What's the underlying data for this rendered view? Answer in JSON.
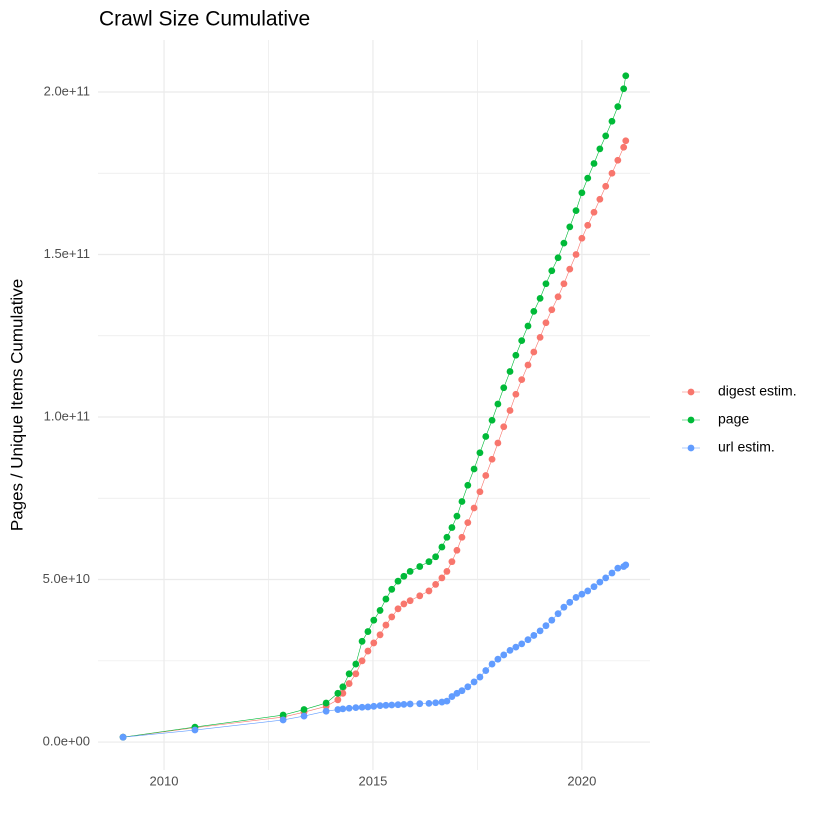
{
  "chart_data": {
    "type": "line",
    "title": "Crawl Size Cumulative",
    "y_label": "Pages / Unique Items Cumulative",
    "x": [
      2009.02,
      2010.74,
      2012.85,
      2013.35,
      2013.88,
      2014.16,
      2014.28,
      2014.43,
      2014.59,
      2014.74,
      2014.88,
      2015.02,
      2015.17,
      2015.31,
      2015.45,
      2015.6,
      2015.74,
      2015.89,
      2016.12,
      2016.34,
      2016.5,
      2016.65,
      2016.77,
      2016.89,
      2017.01,
      2017.13,
      2017.27,
      2017.42,
      2017.56,
      2017.7,
      2017.85,
      2017.99,
      2018.13,
      2018.28,
      2018.42,
      2018.56,
      2018.71,
      2018.85,
      2019.0,
      2019.14,
      2019.28,
      2019.43,
      2019.57,
      2019.71,
      2019.86,
      2020.0,
      2020.14,
      2020.29,
      2020.43,
      2020.57,
      2020.72,
      2020.86,
      2021.0,
      2021.05
    ],
    "series": [
      {
        "name": "digest estim.",
        "color": "#F8766D",
        "values": [
          1500000000.0,
          4400000000.0,
          7700000000.0,
          9200000000.0,
          11000000000.0,
          13000000000.0,
          15000000000.0,
          18000000000.0,
          21000000000.0,
          25000000000.0,
          28000000000.0,
          30500000000.0,
          33000000000.0,
          36000000000.0,
          38500000000.0,
          41000000000.0,
          42500000000.0,
          43500000000.0,
          45000000000.0,
          46500000000.0,
          48500000000.0,
          50500000000.0,
          52500000000.0,
          55500000000.0,
          59000000000.0,
          63000000000.0,
          67500000000.0,
          72000000000.0,
          77000000000.0,
          82000000000.0,
          87000000000.0,
          92000000000.0,
          97000000000.0,
          102000000000.0,
          107000000000.0,
          111500000000.0,
          116000000000.0,
          120000000000.0,
          124500000000.0,
          129000000000.0,
          133000000000.0,
          137000000000.0,
          141000000000.0,
          145500000000.0,
          150000000000.0,
          155000000000.0,
          159000000000.0,
          163000000000.0,
          167000000000.0,
          171000000000.0,
          175000000000.0,
          179000000000.0,
          183000000000.0,
          185000000000.0
        ]
      },
      {
        "name": "page",
        "color": "#00BA38",
        "values": [
          1500000000.0,
          4600000000.0,
          8300000000.0,
          10000000000.0,
          12000000000.0,
          15000000000.0,
          17000000000.0,
          21000000000.0,
          24000000000.0,
          31000000000.0,
          34000000000.0,
          37500000000.0,
          40500000000.0,
          44000000000.0,
          47000000000.0,
          49500000000.0,
          51000000000.0,
          52500000000.0,
          54000000000.0,
          55500000000.0,
          57000000000.0,
          60000000000.0,
          63000000000.0,
          66000000000.0,
          69500000000.0,
          74000000000.0,
          79000000000.0,
          84000000000.0,
          89000000000.0,
          94000000000.0,
          99000000000.0,
          104000000000.0,
          109000000000.0,
          114000000000.0,
          119000000000.0,
          123500000000.0,
          128000000000.0,
          132500000000.0,
          136500000000.0,
          141000000000.0,
          145000000000.0,
          149000000000.0,
          153500000000.0,
          158500000000.0,
          163500000000.0,
          169000000000.0,
          173500000000.0,
          178000000000.0,
          182500000000.0,
          186500000000.0,
          191000000000.0,
          195500000000.0,
          201000000000.0,
          205000000000.0
        ]
      },
      {
        "name": "url estim.",
        "color": "#619CFF",
        "values": [
          1500000000.0,
          3700000000.0,
          6800000000.0,
          8000000000.0,
          9500000000.0,
          10000000000.0,
          10200000000.0,
          10400000000.0,
          10600000000.0,
          10700000000.0,
          10800000000.0,
          11000000000.0,
          11200000000.0,
          11300000000.0,
          11400000000.0,
          11500000000.0,
          11600000000.0,
          11700000000.0,
          11800000000.0,
          11900000000.0,
          12100000000.0,
          12300000000.0,
          12600000000.0,
          14000000000.0,
          15000000000.0,
          15800000000.0,
          17000000000.0,
          18500000000.0,
          20000000000.0,
          22000000000.0,
          24000000000.0,
          25500000000.0,
          26800000000.0,
          28200000000.0,
          29200000000.0,
          30200000000.0,
          31500000000.0,
          32800000000.0,
          34200000000.0,
          35800000000.0,
          37500000000.0,
          39500000000.0,
          41500000000.0,
          43000000000.0,
          44500000000.0,
          45500000000.0,
          46500000000.0,
          47800000000.0,
          49200000000.0,
          50500000000.0,
          52000000000.0,
          53500000000.0,
          54000000000.0,
          54500000000.0
        ]
      }
    ],
    "xlim": [
      2008.42,
      2021.63
    ],
    "xticks": [
      2010,
      2015,
      2020
    ],
    "x_minor_ticks": [
      2012.5,
      2017.5
    ],
    "ylim": [
      -8600000000.0,
      216000000000.0
    ],
    "yticks": [
      {
        "value": 0,
        "label": "0.0e+00"
      },
      {
        "value": 50000000000.0,
        "label": "5.0e+10"
      },
      {
        "value": 100000000000.0,
        "label": "1.0e+11"
      },
      {
        "value": 150000000000.0,
        "label": "1.5e+11"
      },
      {
        "value": 200000000000.0,
        "label": "2.0e+11"
      }
    ],
    "y_minor_ticks": [
      25000000000.0,
      75000000000.0,
      125000000000.0,
      175000000000.0
    ],
    "grid": true,
    "legend_position": "right"
  }
}
